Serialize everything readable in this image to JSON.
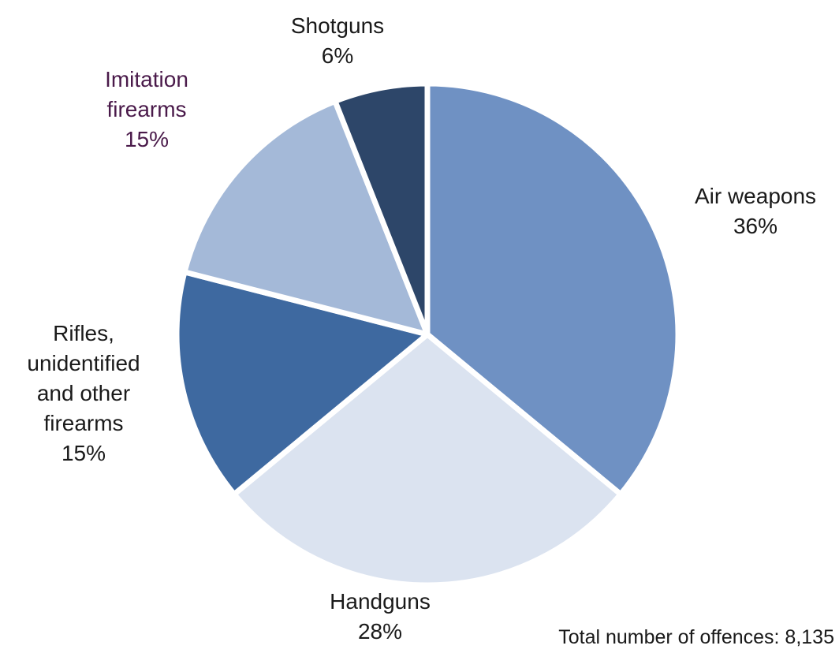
{
  "chart_data": {
    "type": "pie",
    "slices": [
      {
        "label": [
          "Air weapons"
        ],
        "value": 36,
        "value_label": "36%",
        "color": "#6f91c3"
      },
      {
        "label": [
          "Handguns"
        ],
        "value": 28,
        "value_label": "28%",
        "color": "#dbe3f0"
      },
      {
        "label": [
          "Rifles,",
          "unidentified",
          "and other",
          "firearms"
        ],
        "value": 15,
        "value_label": "15%",
        "color": "#3e69a0"
      },
      {
        "label": [
          "Imitation",
          "firearms"
        ],
        "value": 15,
        "value_label": "15%",
        "color": "#a4b9d8"
      },
      {
        "label": [
          "Shotguns"
        ],
        "value": 6,
        "value_label": "6%",
        "color": "#2d4669"
      }
    ],
    "start": "12 o'clock",
    "direction": "clockwise",
    "annotation": "Total number of offences: 8,135",
    "legend": "none"
  }
}
